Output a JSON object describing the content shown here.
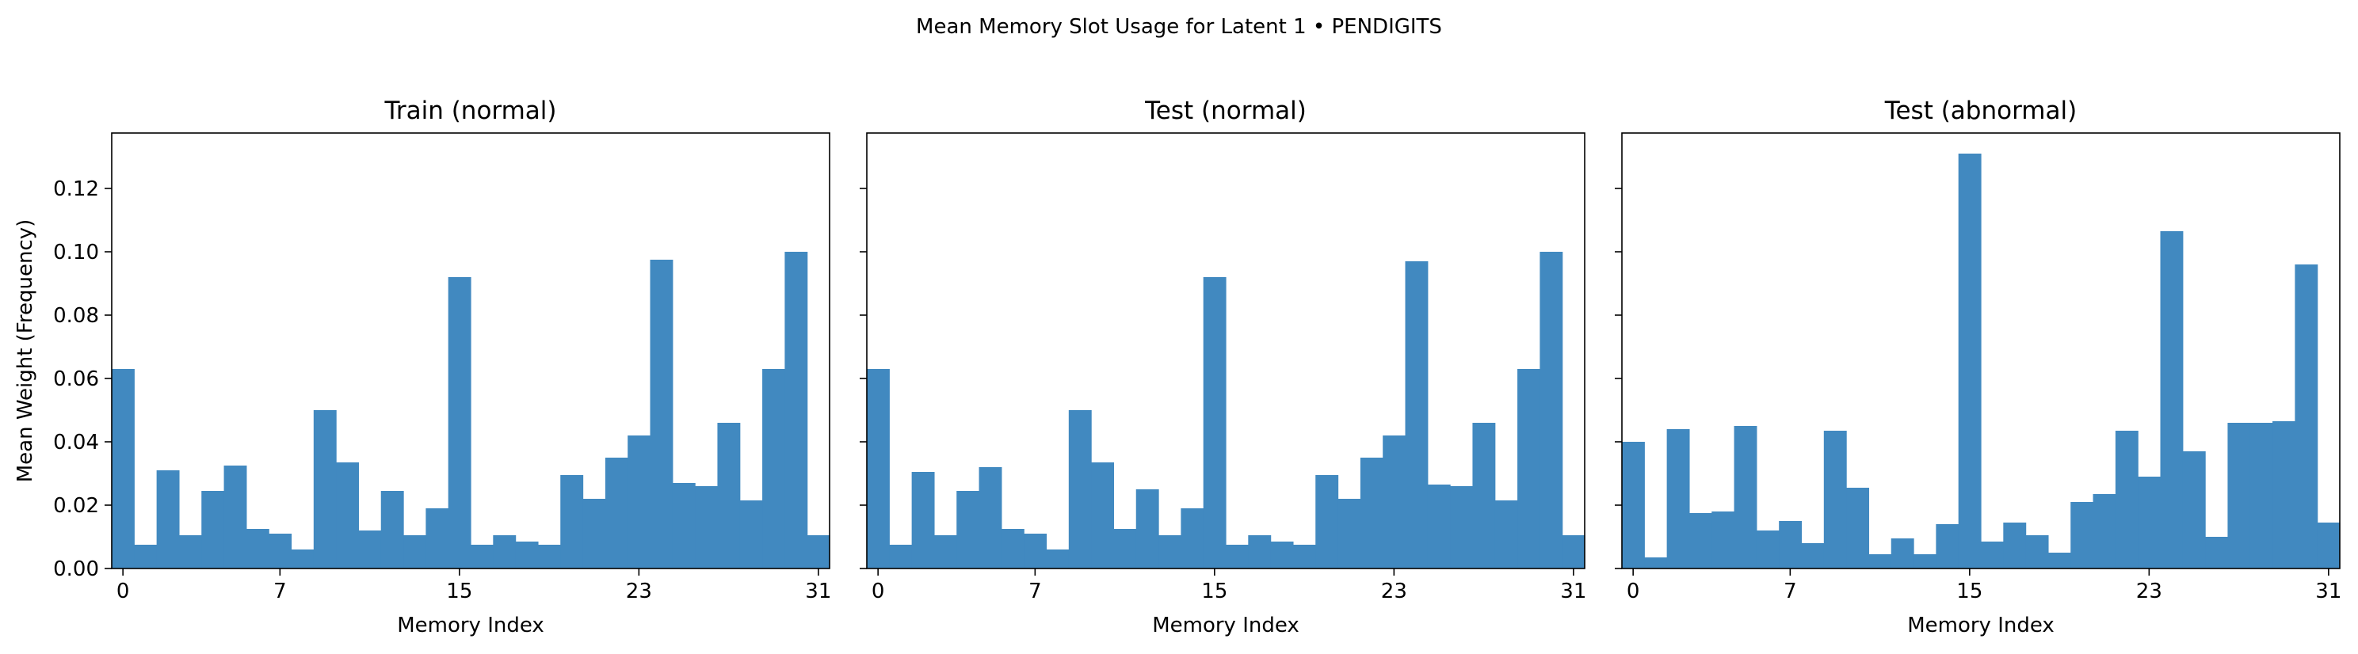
{
  "figure": {
    "suptitle": "Mean Memory Slot Usage for Latent 1 • PENDIGITS"
  },
  "chart_data": [
    {
      "type": "bar",
      "title": "Train (normal)",
      "xlabel": "Memory Index",
      "ylabel": "Mean Weight (Frequency)",
      "x": [
        0,
        1,
        2,
        3,
        4,
        5,
        6,
        7,
        8,
        9,
        10,
        11,
        12,
        13,
        14,
        15,
        16,
        17,
        18,
        19,
        20,
        21,
        22,
        23,
        24,
        25,
        26,
        27,
        28,
        29,
        30,
        31
      ],
      "values": [
        0.063,
        0.0075,
        0.031,
        0.0105,
        0.0245,
        0.0325,
        0.0125,
        0.011,
        0.006,
        0.05,
        0.0335,
        0.012,
        0.0245,
        0.0105,
        0.019,
        0.092,
        0.0075,
        0.0105,
        0.0085,
        0.0075,
        0.0295,
        0.022,
        0.035,
        0.042,
        0.0975,
        0.027,
        0.026,
        0.046,
        0.0215,
        0.063,
        0.1,
        0.0105
      ],
      "xticks": [
        0,
        7,
        15,
        23,
        31
      ],
      "yticks": [
        0.0,
        0.02,
        0.04,
        0.06,
        0.08,
        0.1,
        0.12
      ],
      "ytick_labels": [
        "0.00",
        "0.02",
        "0.04",
        "0.06",
        "0.08",
        "0.10",
        "0.12"
      ],
      "xlim": [
        -0.5,
        31.5
      ],
      "ylim": [
        0,
        0.1375
      ],
      "color": "#4189c0"
    },
    {
      "type": "bar",
      "title": "Test (normal)",
      "xlabel": "Memory Index",
      "x": [
        0,
        1,
        2,
        3,
        4,
        5,
        6,
        7,
        8,
        9,
        10,
        11,
        12,
        13,
        14,
        15,
        16,
        17,
        18,
        19,
        20,
        21,
        22,
        23,
        24,
        25,
        26,
        27,
        28,
        29,
        30,
        31
      ],
      "values": [
        0.063,
        0.0075,
        0.0305,
        0.0105,
        0.0245,
        0.032,
        0.0125,
        0.011,
        0.006,
        0.05,
        0.0335,
        0.0125,
        0.025,
        0.0105,
        0.019,
        0.092,
        0.0075,
        0.0105,
        0.0085,
        0.0075,
        0.0295,
        0.022,
        0.035,
        0.042,
        0.097,
        0.0265,
        0.026,
        0.046,
        0.0215,
        0.063,
        0.1,
        0.0105
      ],
      "xticks": [
        0,
        7,
        15,
        23,
        31
      ],
      "xlim": [
        -0.5,
        31.5
      ],
      "ylim": [
        0,
        0.1375
      ],
      "color": "#4189c0"
    },
    {
      "type": "bar",
      "title": "Test (abnormal)",
      "xlabel": "Memory Index",
      "x": [
        0,
        1,
        2,
        3,
        4,
        5,
        6,
        7,
        8,
        9,
        10,
        11,
        12,
        13,
        14,
        15,
        16,
        17,
        18,
        19,
        20,
        21,
        22,
        23,
        24,
        25,
        26,
        27,
        28,
        29,
        30,
        31
      ],
      "values": [
        0.04,
        0.0035,
        0.044,
        0.0175,
        0.018,
        0.045,
        0.012,
        0.015,
        0.008,
        0.0435,
        0.0255,
        0.0045,
        0.0095,
        0.0045,
        0.014,
        0.131,
        0.0085,
        0.0145,
        0.0105,
        0.005,
        0.021,
        0.0235,
        0.0435,
        0.029,
        0.1065,
        0.037,
        0.01,
        0.046,
        0.046,
        0.0465,
        0.096,
        0.0145
      ],
      "xticks": [
        0,
        7,
        15,
        23,
        31
      ],
      "xlim": [
        -0.5,
        31.5
      ],
      "ylim": [
        0,
        0.1375
      ],
      "color": "#4189c0"
    }
  ]
}
